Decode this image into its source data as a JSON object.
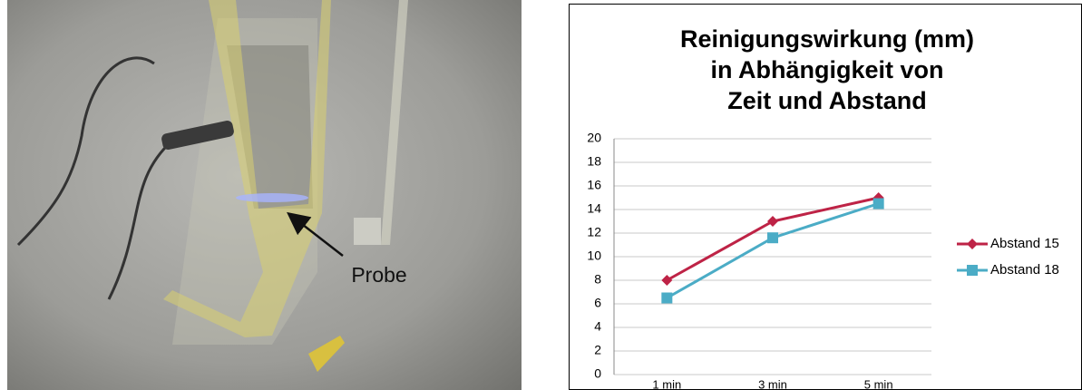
{
  "photo": {
    "label": "Probe"
  },
  "chart_data": {
    "type": "line",
    "title": [
      "Reinigungswirkung (mm)",
      "in Abhängigkeit von",
      "Zeit und Abstand"
    ],
    "categories": [
      "1 min",
      "3 min",
      "5 min"
    ],
    "series": [
      {
        "name": "Abstand 15",
        "color": "#be2346",
        "marker": "diamond",
        "values": [
          8,
          13,
          15
        ]
      },
      {
        "name": "Abstand 18",
        "color": "#4bacc6",
        "marker": "square",
        "values": [
          6.5,
          11.6,
          14.5
        ]
      }
    ],
    "ylim": [
      0,
      20
    ],
    "yticks": [
      0,
      2,
      4,
      6,
      8,
      10,
      12,
      14,
      16,
      18,
      20
    ],
    "grid": true,
    "legend": "right"
  }
}
